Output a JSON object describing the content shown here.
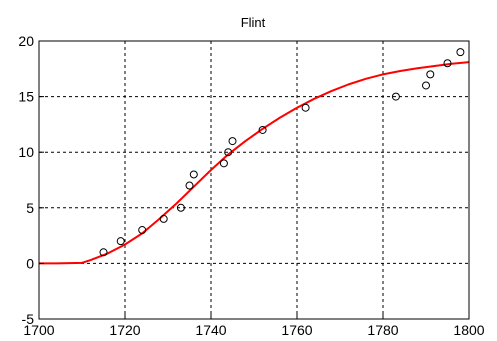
{
  "chart_data": {
    "type": "scatter",
    "title": "Flint",
    "xlabel": "",
    "ylabel": "",
    "xlim": [
      1700,
      1800
    ],
    "ylim": [
      -5,
      20
    ],
    "x_ticks": [
      1700,
      1720,
      1740,
      1760,
      1780,
      1800
    ],
    "y_ticks": [
      -5,
      0,
      5,
      10,
      15,
      20
    ],
    "grid": true,
    "legend": "none",
    "series": [
      {
        "type": "scatter",
        "marker": "open-circle",
        "color": "#000000",
        "points": [
          [
            1715,
            1
          ],
          [
            1719,
            2
          ],
          [
            1724,
            3
          ],
          [
            1729,
            4
          ],
          [
            1733,
            5
          ],
          [
            1735,
            7
          ],
          [
            1736,
            8
          ],
          [
            1743,
            9
          ],
          [
            1744,
            10
          ],
          [
            1745,
            11
          ],
          [
            1752,
            12
          ],
          [
            1762,
            14
          ],
          [
            1783,
            15
          ],
          [
            1790,
            16
          ],
          [
            1791,
            17
          ],
          [
            1795,
            18
          ],
          [
            1798,
            19
          ]
        ]
      },
      {
        "type": "line",
        "color": "#ff0000",
        "points": [
          [
            1700,
            0
          ],
          [
            1704,
            0
          ],
          [
            1710,
            0.05
          ],
          [
            1712,
            0.3
          ],
          [
            1716,
            0.9
          ],
          [
            1720,
            1.7
          ],
          [
            1724,
            2.7
          ],
          [
            1728,
            4.0
          ],
          [
            1732,
            5.4
          ],
          [
            1736,
            6.9
          ],
          [
            1740,
            8.4
          ],
          [
            1744,
            9.8
          ],
          [
            1748,
            11.0
          ],
          [
            1752,
            12.1
          ],
          [
            1756,
            13.1
          ],
          [
            1760,
            14.0
          ],
          [
            1764,
            14.8
          ],
          [
            1768,
            15.5
          ],
          [
            1772,
            16.1
          ],
          [
            1776,
            16.6
          ],
          [
            1780,
            17.0
          ],
          [
            1784,
            17.3
          ],
          [
            1788,
            17.55
          ],
          [
            1792,
            17.75
          ],
          [
            1796,
            17.95
          ],
          [
            1800,
            18.1
          ]
        ]
      }
    ]
  }
}
